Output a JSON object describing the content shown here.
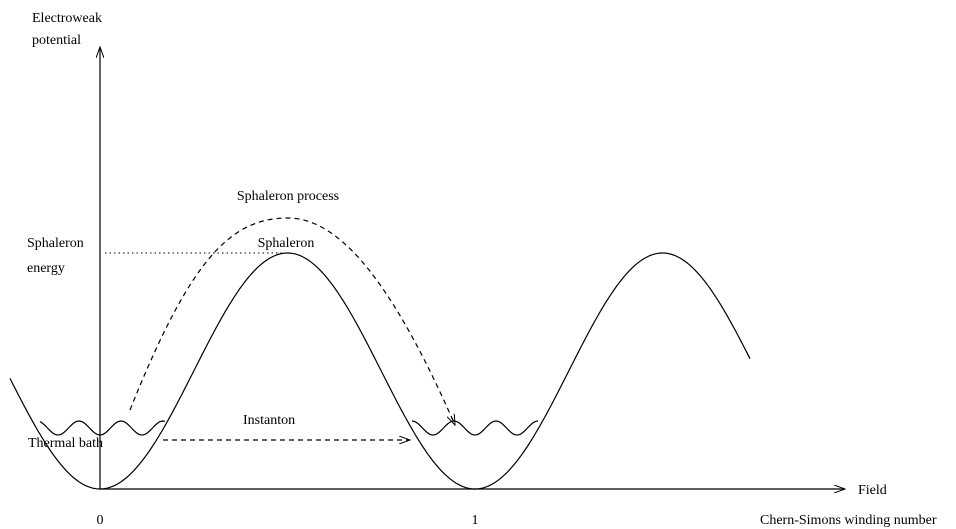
{
  "axis": {
    "y_label": [
      "Electroweak",
      "potential"
    ],
    "x_label": "Field",
    "x_ticks": [
      "0",
      "1"
    ],
    "x_caption": "Chern-Simons winding number"
  },
  "labels": {
    "sphaleron_process": "Sphaleron process",
    "sphaleron": "Sphaleron",
    "sphaleron_energy": [
      "Sphaleron",
      "energy"
    ],
    "instanton": "Instanton",
    "thermal_bath": "Thermal bath"
  }
}
